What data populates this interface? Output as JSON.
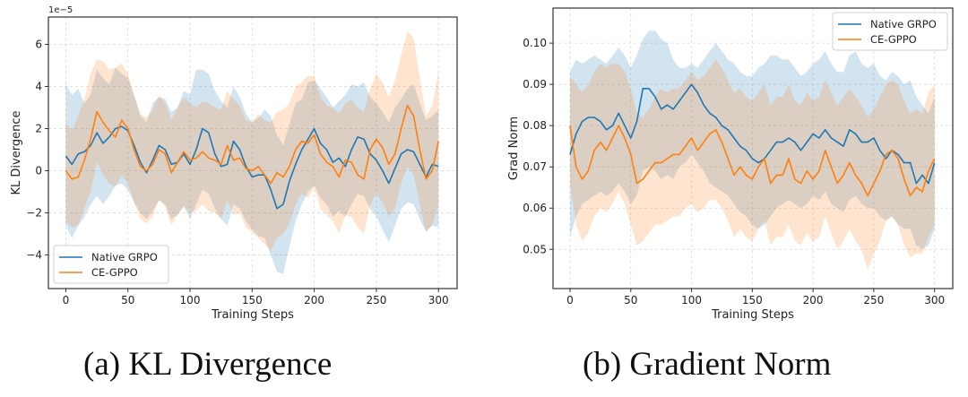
{
  "captions": [
    "(a) KL Divergence",
    "(b) Gradient Norm"
  ],
  "colors": {
    "native": "#1f77b4",
    "ce": "#ff7f0e"
  },
  "chart_data": [
    {
      "type": "line",
      "title": "(a) KL Divergence",
      "xlabel": "Training Steps",
      "ylabel": "KL Divergence",
      "y_scale_label": "1e−5",
      "xlim": [
        -14,
        315
      ],
      "ylim": [
        -5.6,
        7.3
      ],
      "xticks": [
        0,
        50,
        100,
        150,
        200,
        250,
        300
      ],
      "yticks": [
        -4,
        -2,
        0,
        2,
        4,
        6
      ],
      "ytick_labels": [
        "−4",
        "−2",
        "0",
        "2",
        "4",
        "6"
      ],
      "grid": true,
      "legend_position": "lower-left",
      "x": [
        0,
        5,
        10,
        15,
        20,
        25,
        30,
        35,
        40,
        45,
        50,
        55,
        60,
        65,
        70,
        75,
        80,
        85,
        90,
        95,
        100,
        105,
        110,
        115,
        120,
        125,
        130,
        135,
        140,
        145,
        150,
        155,
        160,
        165,
        170,
        175,
        180,
        185,
        190,
        195,
        200,
        205,
        210,
        215,
        220,
        225,
        230,
        235,
        240,
        245,
        250,
        255,
        260,
        265,
        270,
        275,
        280,
        285,
        290,
        295,
        300
      ],
      "series": [
        {
          "name": "Native GRPO",
          "mean": [
            0.7,
            0.3,
            0.8,
            0.9,
            1.2,
            1.8,
            1.3,
            1.6,
            2.0,
            2.1,
            1.9,
            1.2,
            0.4,
            -0.1,
            0.5,
            1.2,
            1.0,
            0.3,
            0.4,
            0.8,
            0.3,
            1.0,
            2.0,
            1.8,
            0.8,
            0.2,
            0.3,
            1.4,
            1.0,
            0.2,
            -0.3,
            -0.2,
            -0.2,
            -0.9,
            -1.8,
            -1.6,
            -0.5,
            0.3,
            1.0,
            1.5,
            2.0,
            1.3,
            1.0,
            0.4,
            0.6,
            0.2,
            1.0,
            1.6,
            1.5,
            0.8,
            0.5,
            0.0,
            -0.6,
            0.1,
            0.8,
            1.0,
            0.9,
            0.3,
            -0.3,
            0.3,
            0.2
          ],
          "upper": [
            4.1,
            3.6,
            3.9,
            3.2,
            3.6,
            4.8,
            4.4,
            4.1,
            4.9,
            4.6,
            4.4,
            3.6,
            2.6,
            2.3,
            3.2,
            3.5,
            3.4,
            2.8,
            3.0,
            3.8,
            3.6,
            4.8,
            4.8,
            4.6,
            3.8,
            3.3,
            3.0,
            4.0,
            3.5,
            2.7,
            2.3,
            2.5,
            2.9,
            2.6,
            1.7,
            1.2,
            2.2,
            3.2,
            3.4,
            4.2,
            4.3,
            3.9,
            3.5,
            3.0,
            3.3,
            3.6,
            4.1,
            4.0,
            4.2,
            3.5,
            3.2,
            2.8,
            2.3,
            3.0,
            3.4,
            3.9,
            4.1,
            3.2,
            2.4,
            2.6,
            2.9
          ],
          "lower": [
            -2.6,
            -3.2,
            -2.6,
            -2.2,
            -1.6,
            -1.2,
            -1.6,
            -1.2,
            -0.7,
            -0.6,
            -0.9,
            -1.5,
            -2.0,
            -2.3,
            -1.9,
            -1.4,
            -1.6,
            -2.3,
            -2.1,
            -1.7,
            -2.3,
            -1.6,
            -0.9,
            -1.1,
            -1.8,
            -2.3,
            -2.6,
            -1.6,
            -1.8,
            -2.4,
            -2.8,
            -3.1,
            -3.2,
            -4.0,
            -4.8,
            -4.9,
            -3.6,
            -2.4,
            -1.6,
            -1.0,
            -0.7,
            -1.3,
            -1.6,
            -2.2,
            -1.9,
            -2.2,
            -1.6,
            -1.1,
            -1.2,
            -1.8,
            -2.2,
            -2.8,
            -3.4,
            -2.6,
            -1.8,
            -1.5,
            -1.6,
            -2.3,
            -2.9,
            -2.6,
            -2.7
          ]
        },
        {
          "name": "CE-GPPO",
          "mean": [
            0.0,
            -0.4,
            -0.3,
            0.5,
            1.5,
            2.8,
            2.3,
            1.9,
            1.6,
            2.4,
            2.0,
            1.0,
            0.2,
            0.0,
            0.3,
            1.0,
            0.8,
            -0.1,
            0.4,
            0.9,
            0.5,
            0.6,
            0.9,
            0.6,
            0.5,
            0.3,
            1.2,
            0.5,
            0.6,
            0.1,
            0.0,
            0.2,
            -0.2,
            -0.6,
            -0.1,
            -0.3,
            0.2,
            1.0,
            1.4,
            1.3,
            1.7,
            0.8,
            0.4,
            0.2,
            -0.3,
            0.5,
            0.4,
            -0.2,
            -0.4,
            1.0,
            1.5,
            1.1,
            0.3,
            0.8,
            2.0,
            3.1,
            2.6,
            1.0,
            -0.4,
            0.0,
            1.4
          ],
          "upper": [
            2.3,
            1.9,
            2.6,
            3.4,
            4.6,
            5.3,
            5.2,
            4.8,
            4.9,
            5.1,
            4.6,
            3.6,
            2.7,
            2.5,
            2.9,
            3.6,
            3.2,
            2.4,
            3.0,
            3.5,
            3.2,
            3.0,
            3.3,
            3.2,
            3.0,
            2.9,
            3.8,
            3.4,
            3.1,
            2.4,
            2.3,
            2.7,
            2.4,
            2.3,
            2.8,
            2.9,
            3.2,
            4.0,
            4.2,
            4.5,
            4.5,
            3.5,
            3.1,
            3.0,
            2.7,
            3.2,
            3.4,
            3.0,
            2.8,
            3.9,
            4.6,
            4.2,
            3.5,
            4.3,
            5.5,
            6.6,
            6.3,
            4.4,
            2.6,
            3.1,
            4.7
          ],
          "lower": [
            -2.4,
            -2.7,
            -2.6,
            -1.8,
            -1.0,
            0.4,
            -0.2,
            -0.6,
            -0.8,
            -0.2,
            -0.6,
            -1.5,
            -2.3,
            -2.5,
            -2.2,
            -1.4,
            -1.7,
            -2.6,
            -2.1,
            -1.7,
            -2.0,
            -1.9,
            -1.6,
            -1.9,
            -2.0,
            -2.3,
            -1.4,
            -2.1,
            -2.0,
            -2.7,
            -2.9,
            -3.2,
            -3.5,
            -3.8,
            -3.2,
            -3.0,
            -2.5,
            -1.6,
            -1.1,
            -1.3,
            -0.8,
            -1.8,
            -2.1,
            -2.4,
            -3.0,
            -2.1,
            -2.2,
            -2.7,
            -3.0,
            -1.6,
            -1.1,
            -1.5,
            -2.2,
            -1.8,
            -0.6,
            0.2,
            -0.2,
            -1.6,
            -2.9,
            -2.6,
            -1.6
          ]
        }
      ]
    },
    {
      "type": "line",
      "title": "(b) Gradient Norm",
      "xlabel": "Training Steps",
      "ylabel": "Grad Norm",
      "xlim": [
        -14,
        315
      ],
      "ylim": [
        0.0405,
        0.1085
      ],
      "xticks": [
        0,
        50,
        100,
        150,
        200,
        250,
        300
      ],
      "yticks": [
        0.05,
        0.06,
        0.07,
        0.08,
        0.09,
        0.1
      ],
      "ytick_labels": [
        "0.05",
        "0.06",
        "0.07",
        "0.08",
        "0.09",
        "0.10"
      ],
      "grid": true,
      "legend_position": "upper-right",
      "x": [
        0,
        5,
        10,
        15,
        20,
        25,
        30,
        35,
        40,
        45,
        50,
        55,
        60,
        65,
        70,
        75,
        80,
        85,
        90,
        95,
        100,
        105,
        110,
        115,
        120,
        125,
        130,
        135,
        140,
        145,
        150,
        155,
        160,
        165,
        170,
        175,
        180,
        185,
        190,
        195,
        200,
        205,
        210,
        215,
        220,
        225,
        230,
        235,
        240,
        245,
        250,
        255,
        260,
        265,
        270,
        275,
        280,
        285,
        290,
        295,
        300
      ],
      "series": [
        {
          "name": "Native GRPO",
          "mean": [
            0.073,
            0.078,
            0.081,
            0.082,
            0.082,
            0.081,
            0.079,
            0.08,
            0.083,
            0.08,
            0.077,
            0.081,
            0.089,
            0.089,
            0.087,
            0.084,
            0.085,
            0.084,
            0.086,
            0.088,
            0.09,
            0.088,
            0.085,
            0.083,
            0.082,
            0.08,
            0.079,
            0.077,
            0.075,
            0.074,
            0.072,
            0.071,
            0.072,
            0.074,
            0.076,
            0.076,
            0.077,
            0.076,
            0.074,
            0.076,
            0.078,
            0.077,
            0.079,
            0.077,
            0.076,
            0.075,
            0.079,
            0.078,
            0.076,
            0.076,
            0.077,
            0.074,
            0.072,
            0.074,
            0.073,
            0.071,
            0.071,
            0.066,
            0.068,
            0.066,
            0.071
          ],
          "upper": [
            0.093,
            0.096,
            0.095,
            0.096,
            0.097,
            0.096,
            0.095,
            0.097,
            0.099,
            0.097,
            0.094,
            0.097,
            0.101,
            0.103,
            0.103,
            0.101,
            0.1,
            0.096,
            0.094,
            0.094,
            0.095,
            0.094,
            0.096,
            0.098,
            0.1,
            0.098,
            0.096,
            0.095,
            0.093,
            0.092,
            0.092,
            0.094,
            0.095,
            0.097,
            0.097,
            0.096,
            0.096,
            0.094,
            0.092,
            0.093,
            0.095,
            0.096,
            0.098,
            0.095,
            0.093,
            0.093,
            0.097,
            0.098,
            0.095,
            0.094,
            0.095,
            0.092,
            0.091,
            0.093,
            0.092,
            0.09,
            0.091,
            0.087,
            0.085,
            0.083,
            0.087
          ],
          "lower": [
            0.053,
            0.058,
            0.061,
            0.062,
            0.063,
            0.064,
            0.063,
            0.064,
            0.066,
            0.064,
            0.061,
            0.063,
            0.069,
            0.07,
            0.069,
            0.067,
            0.068,
            0.067,
            0.07,
            0.071,
            0.073,
            0.071,
            0.069,
            0.066,
            0.065,
            0.064,
            0.063,
            0.061,
            0.059,
            0.058,
            0.056,
            0.055,
            0.056,
            0.058,
            0.06,
            0.061,
            0.062,
            0.061,
            0.06,
            0.061,
            0.063,
            0.062,
            0.064,
            0.061,
            0.06,
            0.059,
            0.062,
            0.063,
            0.061,
            0.06,
            0.06,
            0.058,
            0.057,
            0.058,
            0.056,
            0.055,
            0.055,
            0.051,
            0.05,
            0.051,
            0.055
          ]
        },
        {
          "name": "CE-GPPO",
          "mean": [
            0.08,
            0.07,
            0.067,
            0.069,
            0.074,
            0.076,
            0.074,
            0.077,
            0.08,
            0.077,
            0.073,
            0.066,
            0.067,
            0.069,
            0.071,
            0.071,
            0.072,
            0.073,
            0.073,
            0.075,
            0.077,
            0.074,
            0.076,
            0.078,
            0.079,
            0.076,
            0.072,
            0.068,
            0.07,
            0.068,
            0.067,
            0.07,
            0.072,
            0.066,
            0.068,
            0.068,
            0.072,
            0.067,
            0.066,
            0.069,
            0.067,
            0.069,
            0.074,
            0.07,
            0.066,
            0.068,
            0.071,
            0.068,
            0.066,
            0.063,
            0.066,
            0.069,
            0.073,
            0.074,
            0.072,
            0.067,
            0.063,
            0.065,
            0.064,
            0.069,
            0.072
          ],
          "upper": [
            0.092,
            0.09,
            0.088,
            0.09,
            0.093,
            0.095,
            0.094,
            0.095,
            0.095,
            0.093,
            0.089,
            0.083,
            0.082,
            0.084,
            0.087,
            0.089,
            0.088,
            0.089,
            0.089,
            0.091,
            0.093,
            0.091,
            0.092,
            0.094,
            0.096,
            0.094,
            0.091,
            0.088,
            0.089,
            0.087,
            0.086,
            0.088,
            0.09,
            0.085,
            0.087,
            0.087,
            0.09,
            0.086,
            0.085,
            0.088,
            0.086,
            0.087,
            0.091,
            0.088,
            0.085,
            0.087,
            0.089,
            0.087,
            0.085,
            0.082,
            0.084,
            0.087,
            0.09,
            0.091,
            0.09,
            0.086,
            0.083,
            0.084,
            0.083,
            0.088,
            0.09
          ],
          "lower": [
            0.066,
            0.056,
            0.052,
            0.054,
            0.058,
            0.06,
            0.059,
            0.061,
            0.064,
            0.061,
            0.056,
            0.051,
            0.052,
            0.054,
            0.056,
            0.056,
            0.057,
            0.058,
            0.058,
            0.06,
            0.061,
            0.059,
            0.06,
            0.062,
            0.062,
            0.06,
            0.057,
            0.053,
            0.055,
            0.053,
            0.052,
            0.055,
            0.057,
            0.051,
            0.053,
            0.053,
            0.056,
            0.052,
            0.051,
            0.054,
            0.052,
            0.053,
            0.058,
            0.054,
            0.05,
            0.052,
            0.055,
            0.052,
            0.05,
            0.045,
            0.049,
            0.052,
            0.057,
            0.058,
            0.056,
            0.051,
            0.048,
            0.049,
            0.049,
            0.053,
            0.056
          ]
        }
      ]
    }
  ]
}
